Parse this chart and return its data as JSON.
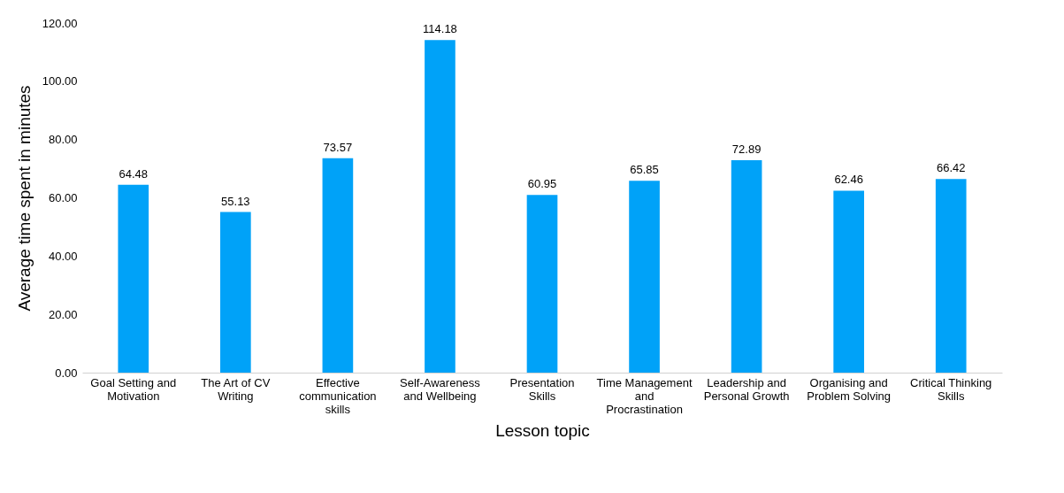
{
  "chart_data": {
    "type": "bar",
    "xlabel": "Lesson topic",
    "ylabel": "Average time spent in minutes",
    "categories": [
      "Goal Setting and Motivation",
      "The Art of CV Writing",
      "Effective communication skills",
      "Self-Awareness and Wellbeing",
      "Presentation Skills",
      "Time Management and Procrastination",
      "Leadership and Personal Growth",
      "Organising and Problem Solving",
      "Critical Thinking Skills"
    ],
    "values": [
      64.48,
      55.13,
      73.57,
      114.18,
      60.95,
      65.85,
      72.89,
      62.46,
      66.42
    ],
    "color": "#00a2f8",
    "ylim": [
      0,
      120
    ],
    "yticks": [
      {
        "value": 0,
        "label": "0.00"
      },
      {
        "value": 20,
        "label": "20.00"
      },
      {
        "value": 40,
        "label": "40.00"
      },
      {
        "value": 60,
        "label": "60.00"
      },
      {
        "value": 80,
        "label": "80.00"
      },
      {
        "value": 100,
        "label": "100.00"
      },
      {
        "value": 120,
        "label": "120.00"
      }
    ],
    "data_labels": true,
    "grid": false
  }
}
